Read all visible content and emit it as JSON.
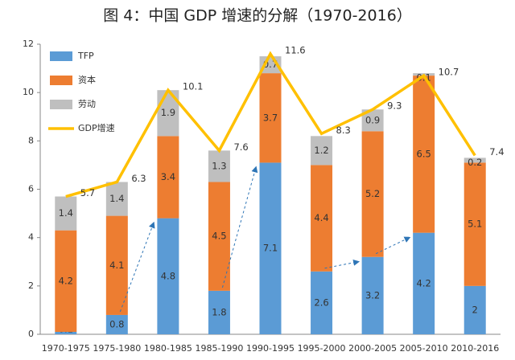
{
  "chart_data": {
    "type": "stacked-bar-line",
    "title": "图 4：中国 GDP 增速的分解（1970-2016）",
    "categories": [
      "1970-1975",
      "1975-1980",
      "1980-1985",
      "1985-1990",
      "1990-1995",
      "1995-2000",
      "2000-2005",
      "2005-2010",
      "2010-2016"
    ],
    "series": [
      {
        "name": "TFP",
        "color": "#5b9bd5",
        "kind": "bar",
        "values": [
          0.1,
          0.8,
          4.8,
          1.8,
          7.1,
          2.6,
          3.2,
          4.2,
          2
        ]
      },
      {
        "name": "资本",
        "color": "#ed7d31",
        "kind": "bar",
        "values": [
          4.2,
          4.1,
          3.4,
          4.5,
          3.7,
          4.4,
          5.2,
          6.5,
          5.1
        ]
      },
      {
        "name": "劳动",
        "color": "#bfbfbf",
        "kind": "bar",
        "values": [
          1.4,
          1.4,
          1.9,
          1.3,
          0.7,
          1.2,
          0.9,
          0.1,
          0.2
        ]
      },
      {
        "name": "GDP增速",
        "color": "#ffc000",
        "kind": "line",
        "values": [
          5.7,
          6.3,
          10.1,
          7.6,
          11.6,
          8.3,
          9.3,
          10.7,
          7.4
        ]
      }
    ],
    "ylim": [
      0,
      12
    ],
    "yticks": [
      0,
      2,
      4,
      6,
      8,
      10,
      12
    ],
    "grid": false,
    "legend": "top-left"
  }
}
